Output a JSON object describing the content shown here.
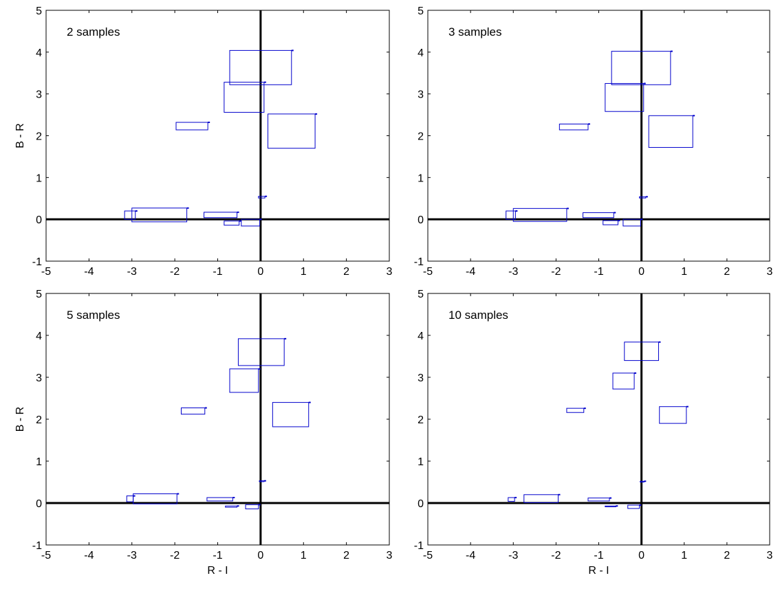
{
  "chart_data": [
    {
      "type": "scatter",
      "title": "2 samples",
      "xlabel": "",
      "ylabel": "B - R",
      "xlim": [
        -5,
        3
      ],
      "ylim": [
        -1,
        5
      ],
      "xticks": [
        "-5",
        "-4",
        "-3",
        "-2",
        "-1",
        "0",
        "1",
        "2",
        "3"
      ],
      "yticks": [
        "-1",
        "0",
        "1",
        "2",
        "3",
        "4",
        "5"
      ],
      "color": "#0000cc",
      "zero_lines": true,
      "boxes": [
        {
          "x0": -0.72,
          "x1": 0.72,
          "y0": 3.22,
          "y1": 4.04
        },
        {
          "x0": -0.85,
          "x1": 0.08,
          "y0": 2.56,
          "y1": 3.28
        },
        {
          "x0": 0.17,
          "x1": 1.27,
          "y0": 1.7,
          "y1": 2.52
        },
        {
          "x0": -1.97,
          "x1": -1.23,
          "y0": 2.14,
          "y1": 2.32
        },
        {
          "x0": -3.17,
          "x1": -2.92,
          "y0": 0.0,
          "y1": 0.2
        },
        {
          "x0": -3.0,
          "x1": -1.72,
          "y0": -0.06,
          "y1": 0.27
        },
        {
          "x0": -1.32,
          "x1": -0.55,
          "y0": 0.04,
          "y1": 0.17
        },
        {
          "x0": -0.85,
          "x1": -0.5,
          "y0": -0.14,
          "y1": -0.04
        },
        {
          "x0": -0.45,
          "x1": -0.02,
          "y0": -0.16,
          "y1": 0.0
        },
        {
          "x0": -0.05,
          "x1": 0.1,
          "y0": 0.51,
          "y1": 0.55
        }
      ]
    },
    {
      "type": "scatter",
      "title": "3 samples",
      "xlabel": "",
      "ylabel": "",
      "xlim": [
        -5,
        3
      ],
      "ylim": [
        -1,
        5
      ],
      "xticks": [
        "-5",
        "-4",
        "-3",
        "-2",
        "-1",
        "0",
        "1",
        "2",
        "3"
      ],
      "yticks": [
        "-1",
        "0",
        "1",
        "2",
        "3",
        "4",
        "5"
      ],
      "color": "#0000cc",
      "zero_lines": true,
      "boxes": [
        {
          "x0": -0.7,
          "x1": 0.68,
          "y0": 3.22,
          "y1": 4.02
        },
        {
          "x0": -0.85,
          "x1": 0.05,
          "y0": 2.58,
          "y1": 3.25
        },
        {
          "x0": 0.17,
          "x1": 1.2,
          "y0": 1.72,
          "y1": 2.48
        },
        {
          "x0": -1.92,
          "x1": -1.25,
          "y0": 2.14,
          "y1": 2.28
        },
        {
          "x0": -3.17,
          "x1": -2.95,
          "y0": 0.0,
          "y1": 0.2
        },
        {
          "x0": -3.0,
          "x1": -1.75,
          "y0": -0.05,
          "y1": 0.26
        },
        {
          "x0": -1.37,
          "x1": -0.65,
          "y0": 0.04,
          "y1": 0.16
        },
        {
          "x0": -0.9,
          "x1": -0.55,
          "y0": -0.13,
          "y1": -0.03
        },
        {
          "x0": -0.43,
          "x1": -0.02,
          "y0": -0.16,
          "y1": 0.0
        },
        {
          "x0": -0.05,
          "x1": 0.1,
          "y0": 0.51,
          "y1": 0.54
        }
      ]
    },
    {
      "type": "scatter",
      "title": "5 samples",
      "xlabel": "R - I",
      "ylabel": "B - R",
      "xlim": [
        -5,
        3
      ],
      "ylim": [
        -1,
        5
      ],
      "xticks": [
        "-5",
        "-4",
        "-3",
        "-2",
        "-1",
        "0",
        "1",
        "2",
        "3"
      ],
      "yticks": [
        "-1",
        "0",
        "1",
        "2",
        "3",
        "4",
        "5"
      ],
      "color": "#0000cc",
      "zero_lines": true,
      "boxes": [
        {
          "x0": -0.52,
          "x1": 0.55,
          "y0": 3.28,
          "y1": 3.92
        },
        {
          "x0": -0.72,
          "x1": -0.05,
          "y0": 2.64,
          "y1": 3.2
        },
        {
          "x0": 0.28,
          "x1": 1.12,
          "y0": 1.82,
          "y1": 2.4
        },
        {
          "x0": -1.85,
          "x1": -1.3,
          "y0": 2.12,
          "y1": 2.27
        },
        {
          "x0": -3.12,
          "x1": -2.97,
          "y0": 0.03,
          "y1": 0.17
        },
        {
          "x0": -2.97,
          "x1": -1.95,
          "y0": -0.02,
          "y1": 0.22
        },
        {
          "x0": -1.25,
          "x1": -0.65,
          "y0": 0.05,
          "y1": 0.13
        },
        {
          "x0": -0.82,
          "x1": -0.55,
          "y0": -0.1,
          "y1": -0.07
        },
        {
          "x0": -0.35,
          "x1": -0.05,
          "y0": -0.14,
          "y1": -0.04
        },
        {
          "x0": -0.03,
          "x1": 0.08,
          "y0": 0.51,
          "y1": 0.53
        }
      ]
    },
    {
      "type": "scatter",
      "title": "10 samples",
      "xlabel": "R - I",
      "ylabel": "",
      "xlim": [
        -5,
        3
      ],
      "ylim": [
        -1,
        5
      ],
      "xticks": [
        "-5",
        "-4",
        "-3",
        "-2",
        "-1",
        "0",
        "1",
        "2",
        "3"
      ],
      "yticks": [
        "-1",
        "0",
        "1",
        "2",
        "3",
        "4",
        "5"
      ],
      "color": "#0000cc",
      "zero_lines": true,
      "boxes": [
        {
          "x0": -0.4,
          "x1": 0.4,
          "y0": 3.4,
          "y1": 3.84
        },
        {
          "x0": -0.67,
          "x1": -0.17,
          "y0": 2.72,
          "y1": 3.1
        },
        {
          "x0": 0.42,
          "x1": 1.05,
          "y0": 1.9,
          "y1": 2.3
        },
        {
          "x0": -1.75,
          "x1": -1.35,
          "y0": 2.16,
          "y1": 2.26
        },
        {
          "x0": -3.12,
          "x1": -2.97,
          "y0": 0.04,
          "y1": 0.13
        },
        {
          "x0": -2.75,
          "x1": -1.95,
          "y0": 0.01,
          "y1": 0.2
        },
        {
          "x0": -1.25,
          "x1": -0.75,
          "y0": 0.05,
          "y1": 0.12
        },
        {
          "x0": -0.85,
          "x1": -0.6,
          "y0": -0.09,
          "y1": -0.07
        },
        {
          "x0": -0.32,
          "x1": -0.05,
          "y0": -0.13,
          "y1": -0.05
        },
        {
          "x0": -0.03,
          "x1": 0.06,
          "y0": 0.5,
          "y1": 0.52
        }
      ]
    }
  ]
}
